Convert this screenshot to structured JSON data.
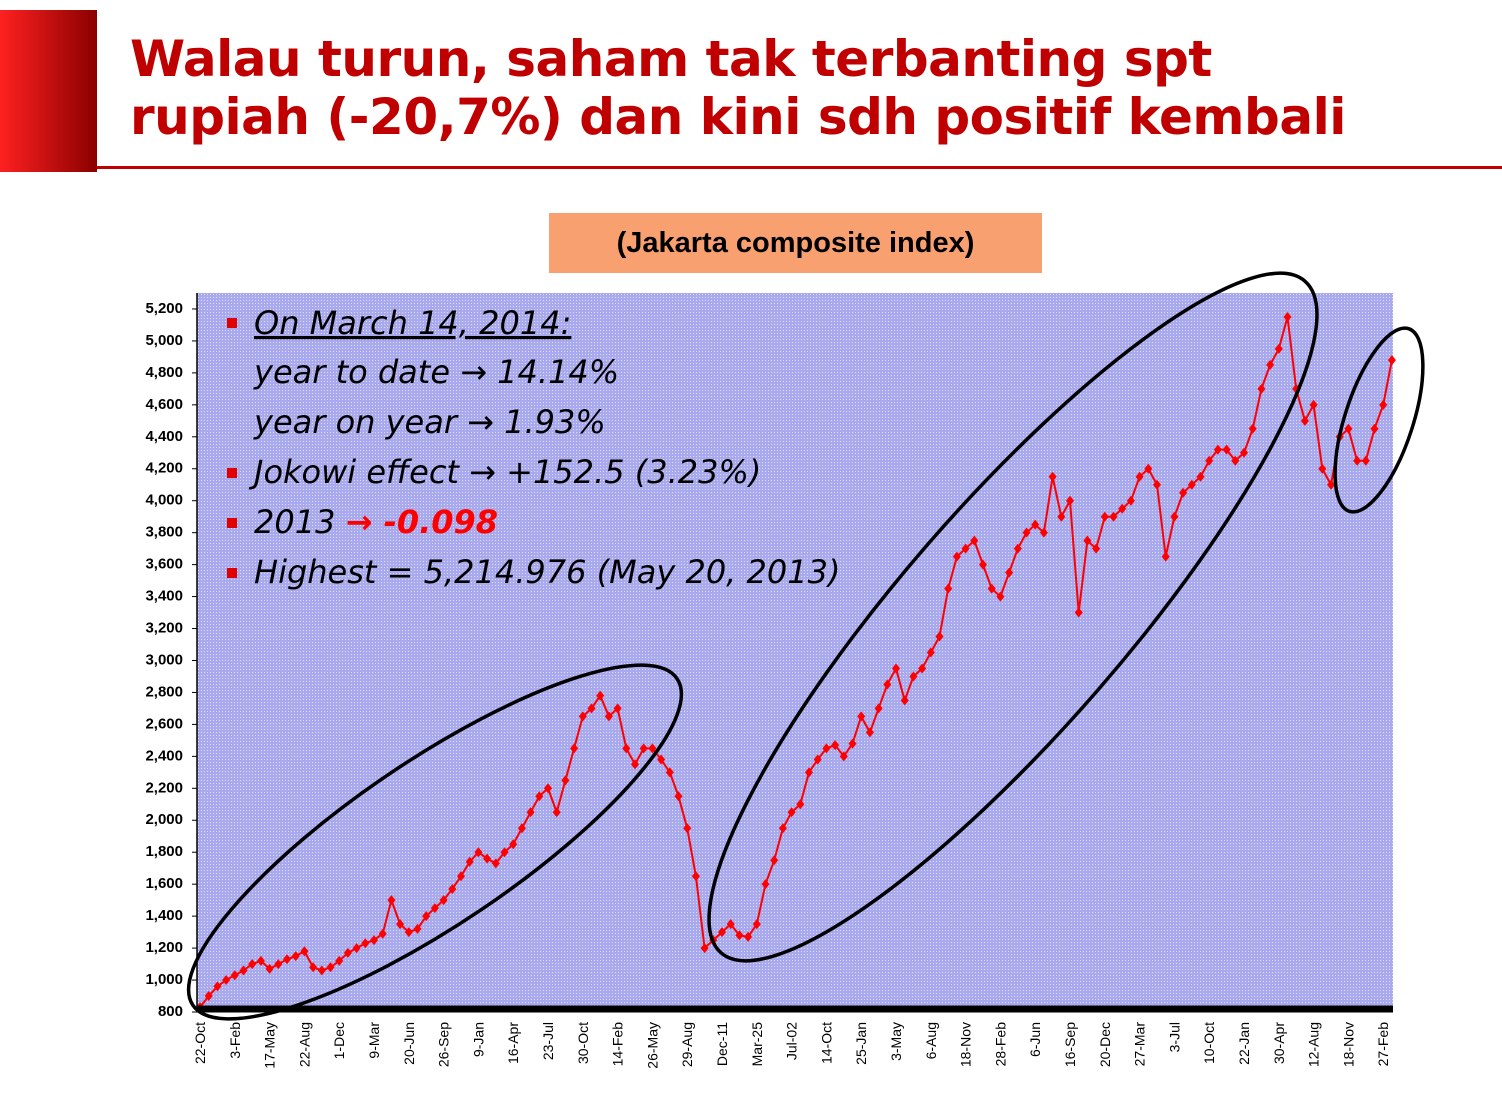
{
  "chart_data": {
    "type": "line",
    "title": [
      "Walau turun, saham tak terbanting spt",
      "rupiah (-20,7%) dan kini sdh positif kembali"
    ],
    "subtitle": "(Jakarta composite index)",
    "notes": [
      "On March 14, 2014:",
      "year to date → 14.14%",
      "year on year → 1.93%",
      "Jokowi effect → +152.5 (3.23%)",
      "2013",
      "→ -0.098",
      "Highest = 5,214.976 (May 20, 2013)"
    ],
    "categories": [
      "22-Oct",
      null,
      null,
      null,
      "3-Feb",
      null,
      null,
      null,
      "17-May",
      null,
      null,
      null,
      "22-Aug",
      null,
      null,
      null,
      "1-Dec",
      null,
      null,
      null,
      "9-Mar",
      null,
      null,
      null,
      "20-Jun",
      null,
      null,
      null,
      "26-Sep",
      null,
      null,
      null,
      "9-Jan",
      null,
      null,
      null,
      "16-Apr",
      null,
      null,
      null,
      "23-Jul",
      null,
      null,
      null,
      "30-Oct",
      null,
      null,
      null,
      "14-Feb",
      null,
      null,
      null,
      "26-May",
      null,
      null,
      null,
      "29-Aug",
      null,
      null,
      null,
      "Dec-11",
      null,
      null,
      null,
      "Mar-25",
      null,
      null,
      null,
      "Jul-02",
      null,
      null,
      null,
      "14-Oct",
      null,
      null,
      null,
      "25-Jan",
      null,
      null,
      null,
      "3-May",
      null,
      null,
      null,
      "6-Aug",
      null,
      null,
      null,
      "18-Nov",
      null,
      null,
      null,
      "28-Feb",
      null,
      null,
      null,
      "6-Jun",
      null,
      null,
      null,
      "16-Sep",
      null,
      null,
      null,
      "20-Dec",
      null,
      null,
      null,
      "27-Mar",
      null,
      null,
      null,
      "3-Jul",
      null,
      null,
      null,
      "10-Oct",
      null,
      null,
      null,
      "22-Jan",
      null,
      null,
      null,
      "30-Apr",
      null,
      null,
      null,
      "12-Aug",
      null,
      null,
      null,
      "18-Nov",
      null,
      null,
      null,
      "27-Feb",
      null
    ],
    "series": [
      {
        "color": "#ff0000",
        "values": [
          830,
          900,
          960,
          1000,
          1030,
          1060,
          1100,
          1120,
          1070,
          1100,
          1130,
          1150,
          1180,
          1080,
          1060,
          1080,
          1120,
          1170,
          1200,
          1230,
          1250,
          1290,
          1500,
          1350,
          1300,
          1320,
          1400,
          1450,
          1500,
          1570,
          1650,
          1740,
          1800,
          1760,
          1730,
          1800,
          1850,
          1950,
          2050,
          2150,
          2200,
          2050,
          2250,
          2450,
          2650,
          2700,
          2780,
          2650,
          2700,
          2450,
          2350,
          2450,
          2450,
          2380,
          2300,
          2150,
          1950,
          1650,
          1200,
          1250,
          1300,
          1350,
          1280,
          1270,
          1350,
          1600,
          1750,
          1950,
          2050,
          2100,
          2300,
          2380,
          2450,
          2470,
          2400,
          2480,
          2650,
          2550,
          2700,
          2850,
          2950,
          2750,
          2900,
          2950,
          3050,
          3150,
          3450,
          3650,
          3700,
          3750,
          3600,
          3450,
          3400,
          3550,
          3700,
          3800,
          3850,
          3800,
          4150,
          3900,
          4000,
          3300,
          3750,
          3700,
          3900,
          3900,
          3950,
          4000,
          4150,
          4200,
          4100,
          3650,
          3900,
          4050,
          4100,
          4150,
          4250,
          4320,
          4320,
          4250,
          4300,
          4450,
          4700,
          4850,
          4950,
          5150,
          4700,
          4500,
          4600,
          4200,
          4100,
          4400,
          4450,
          4250,
          4250,
          4450,
          4600,
          4880
        ]
      }
    ],
    "ylim": [
      800,
      5300
    ],
    "yticks": [
      {
        "value": 800,
        "label": "800"
      },
      {
        "value": 1000,
        "label": "1,000"
      },
      {
        "value": 1200,
        "label": "1,200"
      },
      {
        "value": 1400,
        "label": "1,400"
      },
      {
        "value": 1600,
        "label": "1,600"
      },
      {
        "value": 1800,
        "label": "1,800"
      },
      {
        "value": 2000,
        "label": "2,000"
      },
      {
        "value": 2200,
        "label": "2,200"
      },
      {
        "value": 2400,
        "label": "2,400"
      },
      {
        "value": 2600,
        "label": "2,600"
      },
      {
        "value": 2800,
        "label": "2,800"
      },
      {
        "value": 3000,
        "label": "3,000"
      },
      {
        "value": 3200,
        "label": "3,200"
      },
      {
        "value": 3400,
        "label": "3,400"
      },
      {
        "value": 3600,
        "label": "3,600"
      },
      {
        "value": 3800,
        "label": "3,800"
      },
      {
        "value": 4000,
        "label": "4,000"
      },
      {
        "value": 4200,
        "label": "4,200"
      },
      {
        "value": 4400,
        "label": "4,400"
      },
      {
        "value": 4600,
        "label": "4,600"
      },
      {
        "value": 4800,
        "label": "4,800"
      },
      {
        "value": 5000,
        "label": "5,000"
      },
      {
        "value": 5200,
        "label": "5,200"
      }
    ]
  }
}
